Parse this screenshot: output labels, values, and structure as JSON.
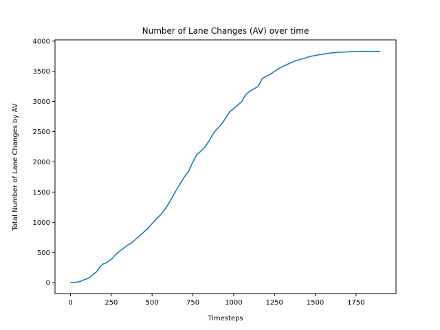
{
  "chart_data": {
    "type": "line",
    "title": "Number of Lane Changes (AV) over time",
    "xlabel": "Timesteps",
    "ylabel": "Total Number of Lane Changes by AV",
    "xlim": [
      -95,
      1995
    ],
    "ylim": [
      -180,
      4020
    ],
    "xticks": [
      0,
      250,
      500,
      750,
      1000,
      1250,
      1500,
      1750
    ],
    "xtick_labels": [
      "0",
      "250",
      "500",
      "750",
      "1000",
      "1250",
      "1500",
      "1750"
    ],
    "yticks": [
      0,
      500,
      1000,
      1500,
      2000,
      2500,
      3000,
      3500,
      4000
    ],
    "ytick_labels": [
      "0",
      "500",
      "1000",
      "1500",
      "2000",
      "2500",
      "3000",
      "3500",
      "4000"
    ],
    "grid": false,
    "line_color": "#1f77b4",
    "series": [
      {
        "x": [
          0,
          30,
          60,
          80,
          100,
          120,
          140,
          160,
          180,
          200,
          220,
          250,
          275,
          300,
          325,
          350,
          375,
          400,
          425,
          450,
          475,
          500,
          525,
          550,
          575,
          600,
          625,
          650,
          675,
          700,
          725,
          750,
          775,
          800,
          825,
          850,
          875,
          900,
          925,
          950,
          975,
          1000,
          1025,
          1050,
          1075,
          1100,
          1125,
          1150,
          1175,
          1200,
          1225,
          1250,
          1275,
          1300,
          1325,
          1350,
          1375,
          1400,
          1425,
          1450,
          1475,
          1500,
          1525,
          1550,
          1575,
          1600,
          1625,
          1650,
          1675,
          1700,
          1725,
          1750,
          1800,
          1850,
          1900
        ],
        "y": [
          0,
          5,
          20,
          45,
          65,
          90,
          140,
          180,
          260,
          310,
          330,
          385,
          460,
          520,
          570,
          620,
          660,
          720,
          780,
          840,
          900,
          980,
          1050,
          1120,
          1200,
          1300,
          1420,
          1540,
          1650,
          1760,
          1850,
          2000,
          2120,
          2180,
          2250,
          2350,
          2470,
          2550,
          2620,
          2720,
          2830,
          2880,
          2940,
          3000,
          3120,
          3170,
          3210,
          3250,
          3380,
          3420,
          3450,
          3500,
          3540,
          3580,
          3610,
          3640,
          3670,
          3690,
          3710,
          3730,
          3750,
          3760,
          3775,
          3785,
          3795,
          3805,
          3810,
          3815,
          3818,
          3822,
          3825,
          3828,
          3830,
          3830,
          3830
        ]
      }
    ]
  }
}
